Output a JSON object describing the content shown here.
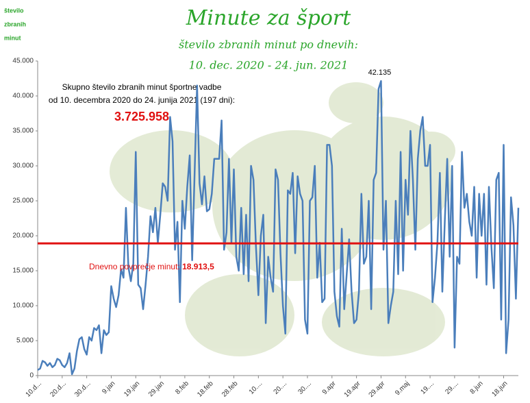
{
  "chart_data": {
    "type": "line",
    "title": "Minute za šport",
    "subtitle": [
      "število zbranih minut po dnevih:",
      "10. dec. 2020 - 24. jun. 2021"
    ],
    "y_label": [
      "število",
      "zbranih",
      "minut"
    ],
    "total_text": [
      "Skupno število zbranih minut športne vadbe",
      "od 10. decembra 2020 do 24. junija 2021 (197 dni):"
    ],
    "total": {
      "value": 3725958,
      "label": "3.725.958"
    },
    "average": {
      "label": "Dnevno povprečje minut:",
      "value": 18913.5,
      "value_label": "18.913,5",
      "color": "#e01010"
    },
    "categories": [
      "10.d...",
      null,
      null,
      null,
      null,
      null,
      null,
      null,
      null,
      null,
      "20.d...",
      null,
      null,
      null,
      null,
      null,
      null,
      null,
      null,
      null,
      "30.d...",
      null,
      null,
      null,
      null,
      null,
      null,
      null,
      null,
      null,
      "9.jan",
      null,
      null,
      null,
      null,
      null,
      null,
      null,
      null,
      null,
      "19.jan",
      null,
      null,
      null,
      null,
      null,
      null,
      null,
      null,
      null,
      "29.jan",
      null,
      null,
      null,
      null,
      null,
      null,
      null,
      null,
      null,
      "8.feb",
      null,
      null,
      null,
      null,
      null,
      null,
      null,
      null,
      null,
      "18.feb",
      null,
      null,
      null,
      null,
      null,
      null,
      null,
      null,
      null,
      "28.feb",
      null,
      null,
      null,
      null,
      null,
      null,
      null,
      null,
      null,
      "10....",
      null,
      null,
      null,
      null,
      null,
      null,
      null,
      null,
      null,
      "20....",
      null,
      null,
      null,
      null,
      null,
      null,
      null,
      null,
      null,
      "30....",
      null,
      null,
      null,
      null,
      null,
      null,
      null,
      null,
      null,
      "9.apr",
      null,
      null,
      null,
      null,
      null,
      null,
      null,
      null,
      null,
      "19.apr",
      null,
      null,
      null,
      null,
      null,
      null,
      null,
      null,
      null,
      "29.apr",
      null,
      null,
      null,
      null,
      null,
      null,
      null,
      null,
      null,
      "9.maj",
      null,
      null,
      null,
      null,
      null,
      null,
      null,
      null,
      null,
      "19....",
      null,
      null,
      null,
      null,
      null,
      null,
      null,
      null,
      null,
      "29....",
      null,
      null,
      null,
      null,
      null,
      null,
      null,
      null,
      null,
      "8.jun",
      null,
      null,
      null,
      null,
      null,
      null,
      null,
      null,
      null,
      "18.jun",
      null,
      null,
      null,
      null,
      null,
      null
    ],
    "series": [
      {
        "color": "#4a7ebb",
        "values": [
          800,
          1000,
          2100,
          1900,
          1400,
          1800,
          1200,
          1500,
          2400,
          2200,
          1500,
          1200,
          1800,
          3200,
          200,
          1000,
          3500,
          5200,
          5500,
          3800,
          3000,
          5500,
          5000,
          6800,
          6500,
          7200,
          3200,
          6500,
          5800,
          6200,
          12800,
          11000,
          9800,
          11500,
          15200,
          14000,
          24000,
          15500,
          13500,
          16000,
          32000,
          13000,
          12500,
          9500,
          13000,
          17000,
          22800,
          20500,
          24000,
          19000,
          23000,
          27500,
          27000,
          25000,
          37000,
          33500,
          18000,
          22000,
          10500,
          25000,
          21000,
          27000,
          31500,
          16500,
          29000,
          41500,
          27500,
          24500,
          28500,
          23500,
          23800,
          26000,
          31000,
          31000,
          31000,
          36500,
          18000,
          20500,
          31000,
          19000,
          29500,
          17000,
          15000,
          24000,
          14500,
          23000,
          13500,
          30000,
          28000,
          18500,
          11500,
          20000,
          23000,
          7500,
          17000,
          14000,
          12000,
          29500,
          28000,
          17500,
          10000,
          6000,
          26500,
          26000,
          29000,
          17500,
          28500,
          26000,
          25000,
          8000,
          6000,
          25000,
          25500,
          30000,
          14000,
          19000,
          10500,
          11000,
          33000,
          33000,
          30000,
          12000,
          8500,
          7000,
          21000,
          9500,
          14500,
          19500,
          12000,
          7500,
          8000,
          12000,
          26000,
          16000,
          17000,
          25000,
          9500,
          28000,
          29000,
          41000,
          42135,
          18000,
          25000,
          7500,
          10000,
          12000,
          25000,
          14500,
          32000,
          15000,
          28000,
          23000,
          35000,
          28000,
          18000,
          31000,
          35000,
          37000,
          30000,
          30000,
          33000,
          10500,
          14000,
          19000,
          29000,
          12000,
          22000,
          31000,
          17000,
          30000,
          4000,
          17000,
          16000,
          32000,
          24000,
          26000,
          22000,
          20000,
          27000,
          14000,
          26000,
          20000,
          26000,
          13000,
          27000,
          18500,
          12500,
          28000,
          29000,
          8000,
          33000,
          3200,
          8000,
          25500,
          21500,
          11000,
          24000
        ],
        "value_labels": [
          null,
          null,
          null,
          null,
          null,
          null,
          null,
          null,
          null,
          null,
          null,
          null,
          null,
          null,
          null,
          null,
          null,
          null,
          null,
          null,
          null,
          null,
          null,
          null,
          null,
          null,
          null,
          null,
          null,
          null,
          null,
          null,
          null,
          null,
          null,
          null,
          null,
          null,
          null,
          null,
          null,
          null,
          null,
          null,
          null,
          null,
          null,
          null,
          null,
          null,
          null,
          null,
          null,
          null,
          null,
          null,
          null,
          null,
          null,
          null,
          null,
          null,
          null,
          null,
          null,
          null,
          null,
          null,
          null,
          null,
          null,
          null,
          null,
          null,
          null,
          null,
          null,
          null,
          null,
          null,
          null,
          null,
          null,
          null,
          null,
          null,
          null,
          null,
          null,
          null,
          null,
          null,
          null,
          null,
          null,
          null,
          null,
          null,
          null,
          null,
          null,
          null,
          null,
          null,
          null,
          null,
          null,
          null,
          null,
          null,
          null,
          null,
          null,
          null,
          null,
          null,
          null,
          null,
          null,
          null,
          null,
          null,
          null,
          null,
          null,
          null,
          null,
          null,
          null,
          null,
          null,
          null,
          null,
          null,
          null,
          null,
          null,
          null,
          null,
          null,
          "42.135",
          null,
          null,
          null,
          null,
          null,
          null,
          null,
          null,
          null,
          null,
          null,
          null,
          null,
          null,
          null,
          null,
          null,
          null,
          null,
          null,
          null,
          null,
          null,
          null,
          null,
          null,
          null,
          null,
          null,
          null,
          null,
          null,
          null,
          null,
          null,
          null,
          null,
          null,
          null,
          null,
          null,
          null,
          null,
          null,
          null,
          null,
          null,
          null,
          null,
          null,
          null,
          null,
          null,
          null,
          null,
          null
        ]
      }
    ],
    "ylim": [
      0,
      45000
    ],
    "yticks": [
      0,
      {
        "value": 5000,
        "label": "5.000"
      },
      {
        "value": 10000,
        "label": "10.000"
      },
      {
        "value": 15000,
        "label": "15.000"
      },
      {
        "value": 20000,
        "label": "20.000"
      },
      {
        "value": 25000,
        "label": "25.000"
      },
      {
        "value": 30000,
        "label": "30.000"
      },
      {
        "value": 35000,
        "label": "35.000"
      },
      {
        "value": 40000,
        "label": "40.000"
      },
      {
        "value": 45000,
        "label": "45.000"
      }
    ]
  }
}
